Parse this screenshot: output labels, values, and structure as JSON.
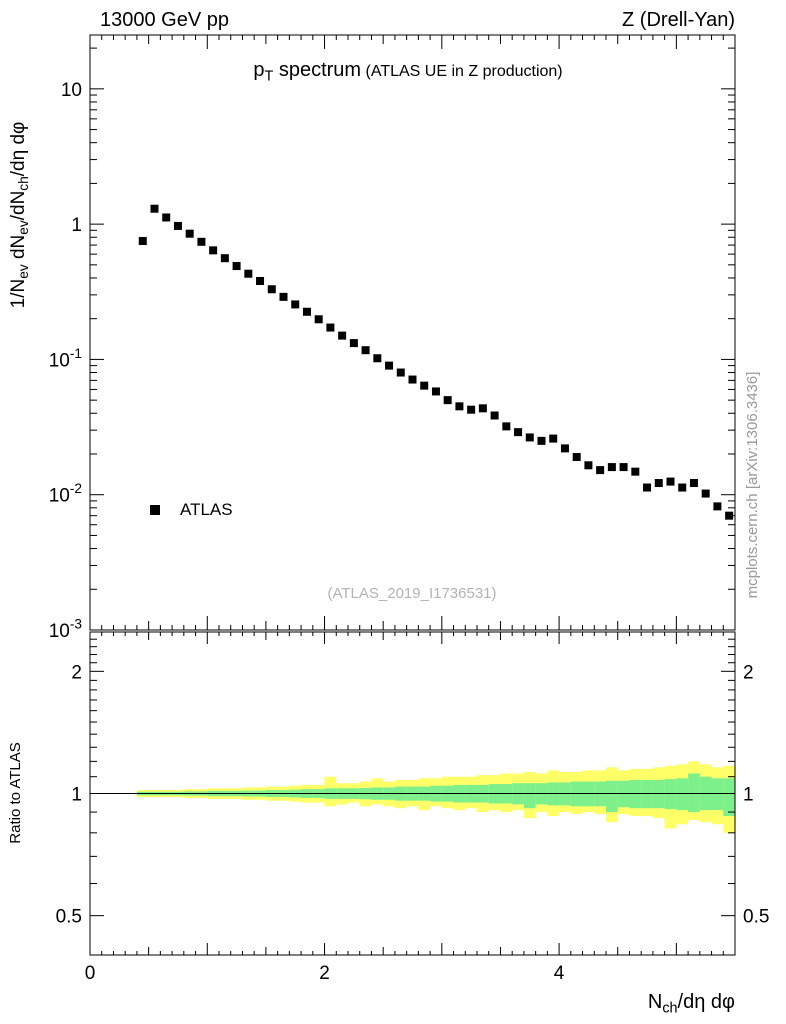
{
  "header": {
    "left": "13000 GeV pp",
    "right": "Z (Drell-Yan)"
  },
  "chart_data": {
    "type": "scatter",
    "title_main": "p_T spectrum",
    "title_paren": "(ATLAS UE in Z production)",
    "xlabel": "N_ch/dη dφ",
    "ylabel": "1/N_ev dN_ev/dN_ch/dη dφ",
    "ratio_ylabel": "Ratio to ATLAS",
    "watermark": "(ATLAS_2019_I1736531)",
    "side_note": "mcplots.cern.ch [arXiv:1306.3436]",
    "legend": [
      {
        "label": "ATLAS",
        "marker": "black-square"
      }
    ],
    "xlim": [
      0,
      5.5
    ],
    "ylim_main": [
      0.001,
      25
    ],
    "ylim_ratio": [
      0.4,
      2.5
    ],
    "x_major_ticks": [
      0,
      2,
      4
    ],
    "y_major_tick_values": [
      10,
      1,
      0.1,
      0.01,
      0.001
    ],
    "y_major_tick_labels": [
      "10",
      "1",
      "10^-1",
      "10^-2",
      "10^-3"
    ],
    "ratio_tick_values": [
      2,
      1,
      0.5
    ],
    "ratio_tick_labels": [
      "2",
      "1",
      "0.5"
    ],
    "colors": {
      "marker": "#000000",
      "yellow_band": "#ffff66",
      "green_band": "#7df08c",
      "gray_text": "#999999",
      "watermark_gray": "#b3b3b3"
    },
    "series": [
      {
        "name": "ATLAS",
        "x": [
          0.45,
          0.55,
          0.65,
          0.75,
          0.85,
          0.95,
          1.05,
          1.15,
          1.25,
          1.35,
          1.45,
          1.55,
          1.65,
          1.75,
          1.85,
          1.95,
          2.05,
          2.15,
          2.25,
          2.35,
          2.45,
          2.55,
          2.65,
          2.75,
          2.85,
          2.95,
          3.05,
          3.15,
          3.25,
          3.35,
          3.45,
          3.55,
          3.65,
          3.75,
          3.85,
          3.95,
          4.05,
          4.15,
          4.25,
          4.35,
          4.45,
          4.55,
          4.65,
          4.75,
          4.85,
          4.95,
          5.05,
          5.15,
          5.25,
          5.35,
          5.45
        ],
        "y": [
          0.75,
          1.3,
          1.12,
          0.97,
          0.85,
          0.74,
          0.64,
          0.56,
          0.49,
          0.43,
          0.38,
          0.33,
          0.29,
          0.255,
          0.225,
          0.198,
          0.172,
          0.15,
          0.132,
          0.117,
          0.102,
          0.09,
          0.08,
          0.071,
          0.064,
          0.058,
          0.05,
          0.045,
          0.0425,
          0.0435,
          0.0385,
          0.032,
          0.029,
          0.0265,
          0.025,
          0.026,
          0.022,
          0.019,
          0.0165,
          0.0152,
          0.016,
          0.016,
          0.0148,
          0.0113,
          0.0122,
          0.0125,
          0.0113,
          0.0122,
          0.0102,
          0.0082,
          0.007
        ]
      }
    ],
    "ratio_bands": {
      "bin_halfwidth": 0.05,
      "yellow": {
        "color": "#ffff66",
        "hi": [
          1.02,
          1.02,
          1.02,
          1.02,
          1.025,
          1.025,
          1.03,
          1.03,
          1.03,
          1.035,
          1.035,
          1.04,
          1.04,
          1.045,
          1.05,
          1.05,
          1.1,
          1.06,
          1.06,
          1.07,
          1.09,
          1.07,
          1.08,
          1.08,
          1.09,
          1.09,
          1.1,
          1.1,
          1.1,
          1.11,
          1.11,
          1.12,
          1.12,
          1.13,
          1.12,
          1.14,
          1.13,
          1.13,
          1.14,
          1.14,
          1.16,
          1.14,
          1.15,
          1.15,
          1.16,
          1.17,
          1.18,
          1.2,
          1.18,
          1.16,
          1.17
        ],
        "lo": [
          0.98,
          0.98,
          0.98,
          0.98,
          0.975,
          0.975,
          0.97,
          0.97,
          0.97,
          0.965,
          0.965,
          0.96,
          0.96,
          0.955,
          0.95,
          0.95,
          0.93,
          0.94,
          0.95,
          0.93,
          0.94,
          0.93,
          0.92,
          0.93,
          0.91,
          0.93,
          0.92,
          0.91,
          0.92,
          0.9,
          0.91,
          0.9,
          0.91,
          0.87,
          0.9,
          0.88,
          0.9,
          0.89,
          0.9,
          0.89,
          0.85,
          0.89,
          0.88,
          0.88,
          0.87,
          0.82,
          0.84,
          0.86,
          0.85,
          0.84,
          0.8
        ]
      },
      "green": {
        "color": "#7df08c",
        "hi": [
          1.01,
          1.01,
          1.01,
          1.01,
          1.012,
          1.012,
          1.015,
          1.015,
          1.015,
          1.017,
          1.017,
          1.02,
          1.02,
          1.022,
          1.025,
          1.025,
          1.03,
          1.03,
          1.03,
          1.032,
          1.035,
          1.035,
          1.04,
          1.04,
          1.04,
          1.045,
          1.045,
          1.05,
          1.05,
          1.05,
          1.055,
          1.055,
          1.06,
          1.06,
          1.06,
          1.065,
          1.065,
          1.07,
          1.07,
          1.07,
          1.075,
          1.075,
          1.08,
          1.08,
          1.08,
          1.085,
          1.09,
          1.12,
          1.1,
          1.09,
          1.09
        ],
        "lo": [
          0.99,
          0.99,
          0.99,
          0.99,
          0.988,
          0.988,
          0.985,
          0.985,
          0.985,
          0.983,
          0.983,
          0.98,
          0.98,
          0.978,
          0.975,
          0.975,
          0.97,
          0.97,
          0.97,
          0.968,
          0.965,
          0.965,
          0.96,
          0.96,
          0.96,
          0.955,
          0.955,
          0.95,
          0.95,
          0.95,
          0.945,
          0.945,
          0.94,
          0.92,
          0.94,
          0.935,
          0.935,
          0.93,
          0.93,
          0.93,
          0.9,
          0.925,
          0.92,
          0.92,
          0.92,
          0.915,
          0.91,
          0.9,
          0.91,
          0.91,
          0.88
        ]
      }
    }
  }
}
